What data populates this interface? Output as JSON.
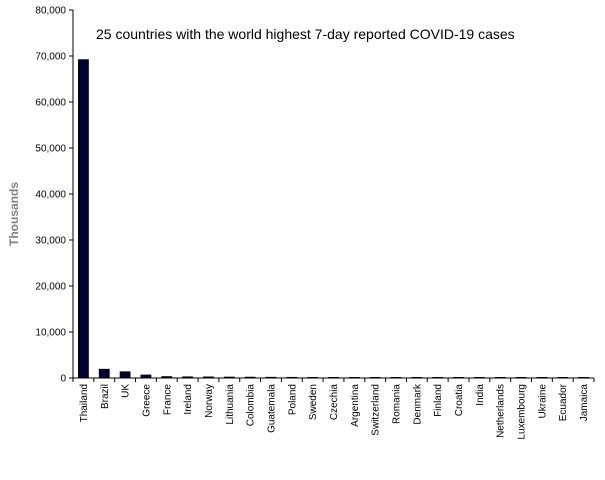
{
  "chart_data": {
    "type": "bar",
    "title": "25 countries with the world highest 7-day reported COVID-19 cases",
    "xlabel": "",
    "ylabel": "Thousands",
    "ylim": [
      0,
      80000
    ],
    "yticks": [
      0,
      10000,
      20000,
      30000,
      40000,
      50000,
      60000,
      70000,
      80000
    ],
    "ytick_labels": [
      "0",
      "10,000",
      "20,000",
      "30,000",
      "40,000",
      "50,000",
      "60,000",
      "70,000",
      "80,000"
    ],
    "grid": false,
    "legend": "none",
    "bar_color": "#000033",
    "categories": [
      "Thailand",
      "Brazil",
      "UK",
      "Greece",
      "France",
      "Ireland",
      "Norway",
      "Lithuania",
      "Colombia",
      "Guatemala",
      "Poland",
      "Sweden",
      "Czechia",
      "Argentina",
      "Switzerland",
      "Romania",
      "Denmark",
      "Finland",
      "Croatia",
      "India",
      "Netherlands",
      "Luxembourg",
      "Ukraine",
      "Ecuador",
      "Jamaica"
    ],
    "values": [
      69200,
      1900,
      1350,
      650,
      300,
      250,
      230,
      200,
      180,
      160,
      140,
      120,
      60,
      50,
      40,
      35,
      30,
      25,
      20,
      18,
      15,
      12,
      10,
      8,
      6
    ]
  }
}
